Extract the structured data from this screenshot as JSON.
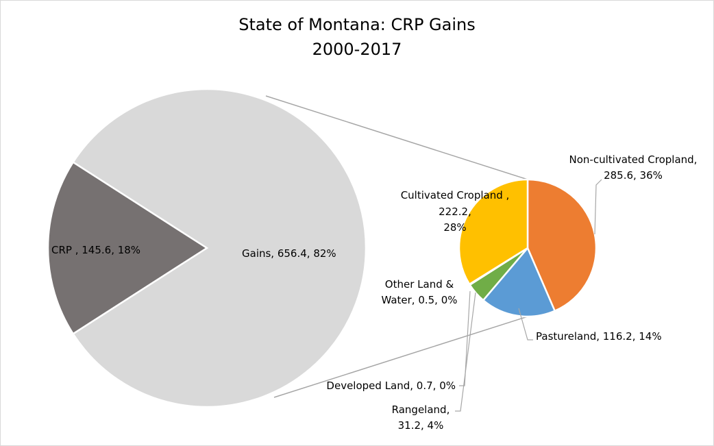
{
  "chart_data": {
    "type": "pie",
    "title": "State of Montana: CRP Gains",
    "subtitle": "2000-2017",
    "main_pie": [
      {
        "label": "CRP ",
        "value": 145.6,
        "percent": "18%",
        "color": "#767171"
      },
      {
        "label": "Gains",
        "value": 656.4,
        "percent": "82%",
        "color": "#d9d9d9"
      }
    ],
    "breakdown_of": "Gains",
    "breakdown_pie": [
      {
        "label": "Non-cultivated Cropland",
        "value": 285.6,
        "percent": "36%",
        "color": "#ed7d31"
      },
      {
        "label": "Pastureland",
        "value": 116.2,
        "percent": "14%",
        "color": "#5b9bd5"
      },
      {
        "label": "Rangeland",
        "value": 31.2,
        "percent": "4%",
        "color": "#70ad47"
      },
      {
        "label": "Developed Land",
        "value": 0.7,
        "percent": "0%",
        "color": "#264478"
      },
      {
        "label": "Other Land & Water",
        "value": 0.5,
        "percent": "0%",
        "color": "#9e480e"
      },
      {
        "label": "Cultivated Cropland ",
        "value": 222.2,
        "percent": "28%",
        "color": "#ffc000"
      }
    ],
    "labels": {
      "crp": "CRP , 145.6, 18%",
      "gains": "Gains, 656.4, 82%",
      "noncult_1": "Non-cultivated Cropland,",
      "noncult_2": "285.6, 36%",
      "pasture": "Pastureland, 116.2, 14%",
      "developed": "Developed Land, 0.7, 0%",
      "range_1": "Rangeland,",
      "range_2": "31.2, 4%",
      "other_1": "Other Land &",
      "other_2": "Water, 0.5, 0%",
      "cult_1": "Cultivated Cropland ,",
      "cult_2": "222.2,",
      "cult_3": "28%"
    }
  }
}
